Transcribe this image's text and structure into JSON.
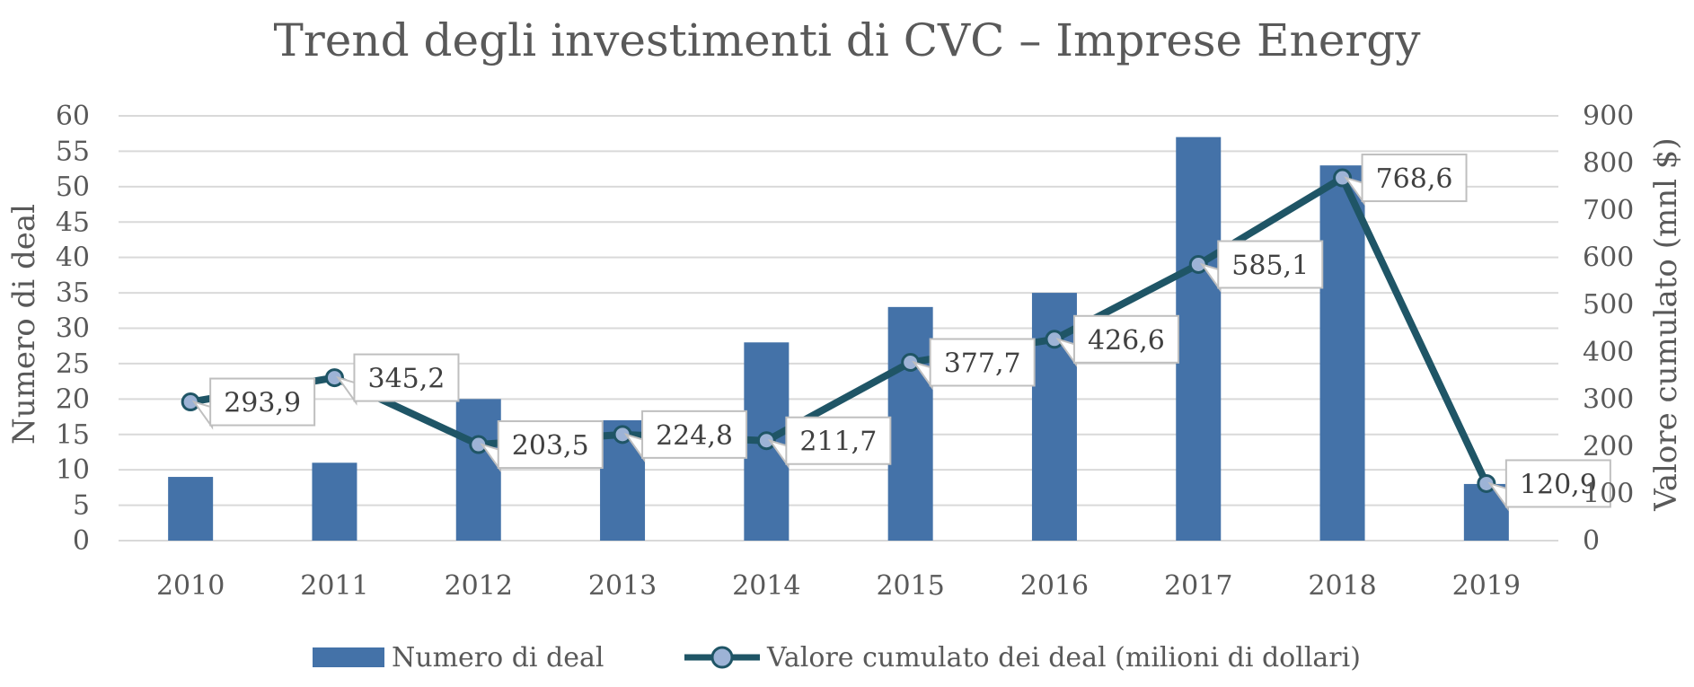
{
  "chart_data": {
    "type": "bar",
    "title": "Trend degli investimenti di CVC – Imprese Energy",
    "categories": [
      "2010",
      "2011",
      "2012",
      "2013",
      "2014",
      "2015",
      "2016",
      "2017",
      "2018",
      "2019"
    ],
    "series": [
      {
        "name": "Numero di deal",
        "type": "bar",
        "axis": "left",
        "color": "#4472A8",
        "values": [
          9,
          11,
          20,
          17,
          28,
          33,
          35,
          57,
          53,
          8
        ]
      },
      {
        "name": "Valore cumulato dei deal (milioni di dollari)",
        "type": "line",
        "axis": "right",
        "color": "#1F5566",
        "marker_color": "#9DB3D6",
        "values": [
          293.9,
          345.2,
          203.5,
          224.8,
          211.7,
          377.7,
          426.6,
          585.1,
          768.6,
          120.9
        ],
        "labels": [
          "293,9",
          "345,2",
          "203,5",
          "224,8",
          "211,7",
          "377,7",
          "426,6",
          "585,1",
          "768,6",
          "120,9"
        ]
      }
    ],
    "ylabel_left": "Numero di deal",
    "ylabel_right": "Valore cumulato (mnl $)",
    "ylim_left": [
      0,
      60
    ],
    "yticks_left": [
      "0",
      "5",
      "10",
      "15",
      "20",
      "25",
      "30",
      "35",
      "40",
      "45",
      "50",
      "55",
      "60"
    ],
    "ylim_right": [
      0,
      900
    ],
    "yticks_right": [
      "0",
      "100",
      "200",
      "300",
      "400",
      "500",
      "600",
      "700",
      "800",
      "900"
    ],
    "grid": true,
    "legend_position": "bottom"
  }
}
